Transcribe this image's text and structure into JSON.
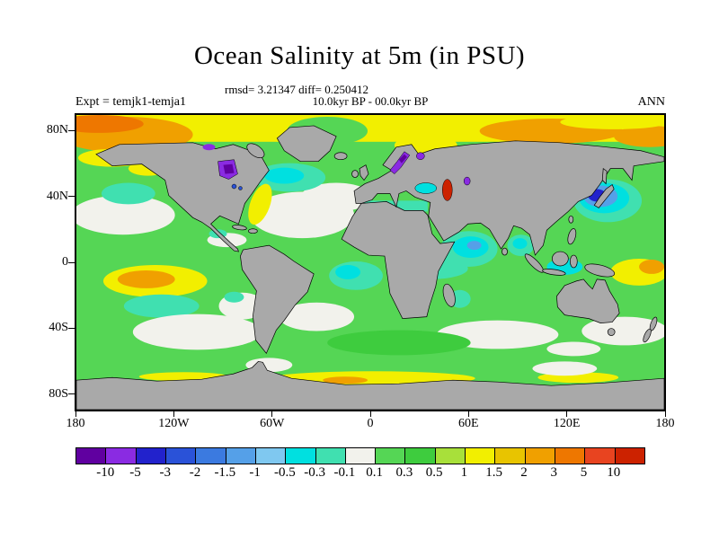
{
  "header": {
    "title": "Ocean Salinity at 5m (in PSU)",
    "stats": "rmsd= 3.21347 diff= 0.250412",
    "period": "10.0kyr BP - 00.0kyr BP",
    "experiment": "Expt = temjk1-temja1",
    "season": "ANN"
  },
  "axes": {
    "y_ticks": [
      {
        "label": "80N",
        "v": 18.3
      },
      {
        "label": "40N",
        "v": 91.7
      },
      {
        "label": "0",
        "v": 165
      },
      {
        "label": "40S",
        "v": 238.3
      },
      {
        "label": "80S",
        "v": 311.7
      }
    ],
    "x_ticks": [
      {
        "label": "180",
        "v": 0
      },
      {
        "label": "120W",
        "v": 109.3
      },
      {
        "label": "60W",
        "v": 218.7
      },
      {
        "label": "0",
        "v": 328
      },
      {
        "label": "60E",
        "v": 437.3
      },
      {
        "label": "120E",
        "v": 546.6
      },
      {
        "label": "180",
        "v": 656
      }
    ]
  },
  "colorbar": {
    "labels": [
      "-10",
      "-5",
      "-3",
      "-2",
      "-1.5",
      "-1",
      "-0.5",
      "-0.3",
      "-0.1",
      "0.1",
      "0.3",
      "0.5",
      "1",
      "1.5",
      "2",
      "3",
      "5",
      "10"
    ],
    "colors": [
      "#6000a0",
      "#8a2be2",
      "#2222cc",
      "#2a52d8",
      "#3b7ae0",
      "#55a0e8",
      "#7fc8f0",
      "#00e0e0",
      "#40e0b0",
      "#f2f2ec",
      "#55d655",
      "#3ecc3e",
      "#a8e03a",
      "#f2ef00",
      "#e8c400",
      "#f0a000",
      "#ee7700",
      "#e84420",
      "#cc2200"
    ]
  },
  "map": {
    "land_color": "#a9a9a9",
    "coast_color": "#000000",
    "ocean_default_color": "#55d655"
  },
  "chart_data": {
    "type": "heatmap",
    "title": "Ocean Salinity at 5m (in PSU)",
    "units": "PSU",
    "statistics": {
      "rmsd": 3.21347,
      "diff": 0.250412
    },
    "comparison": "10.0kyr BP - 00.0kyr BP",
    "experiment": "temjk1-temja1",
    "season": "ANN",
    "projection": "latitude-longitude world map",
    "lon_range": [
      -180,
      180
    ],
    "lat_range": [
      -90,
      90
    ],
    "x_tick_labels": [
      "180",
      "120W",
      "60W",
      "0",
      "60E",
      "120E",
      "180"
    ],
    "y_tick_labels": [
      "80N",
      "40N",
      "0",
      "40S",
      "80S"
    ],
    "contour_levels": [
      -10,
      -5,
      -3,
      -2,
      -1.5,
      -1,
      -0.5,
      -0.3,
      -0.1,
      0.1,
      0.3,
      0.5,
      1,
      1.5,
      2,
      3,
      5,
      10
    ],
    "palette": [
      "#6000a0",
      "#8a2be2",
      "#2222cc",
      "#2a52d8",
      "#3b7ae0",
      "#55a0e8",
      "#7fc8f0",
      "#00e0e0",
      "#40e0b0",
      "#f2f2ec",
      "#55d655",
      "#3ecc3e",
      "#a8e03a",
      "#f2ef00",
      "#e8c400",
      "#f0a000",
      "#ee7700",
      "#e84420",
      "#cc2200"
    ],
    "land_color": "#a9a9a9",
    "notable_features": [
      {
        "region": "Most open ocean",
        "anomaly_psu": "0.1 to 0.3",
        "sign": "slightly positive"
      },
      {
        "region": "Arctic Ocean band 70-90N",
        "anomaly_psu": "+1 to +3",
        "sign": "positive"
      },
      {
        "region": "Subtropical gyres (N/S Pacific, N/S Atlantic, S Indian)",
        "anomaly_psu": "-0.1 to 0.1",
        "sign": "near zero (white)"
      },
      {
        "region": "Subpolar North Atlantic / Labrador Sea",
        "anomaly_psu": "-0.5 to -0.1",
        "sign": "negative"
      },
      {
        "region": "NW Pacific near Japan / Sea of Japan",
        "anomaly_psu": "-3 to -1",
        "sign": "negative"
      },
      {
        "region": "Hudson Bay",
        "anomaly_psu": "< -5",
        "sign": "strong negative"
      },
      {
        "region": "Baltic Sea and White Sea",
        "anomaly_psu": "< -5",
        "sign": "strong negative"
      },
      {
        "region": "Caspian Sea",
        "anomaly_psu": "> +10",
        "sign": "strong positive"
      },
      {
        "region": "Eastern equatorial Pacific",
        "anomaly_psu": "+1 to +3",
        "sign": "positive"
      },
      {
        "region": "Arabian Sea and Bay of Bengal",
        "anomaly_psu": "-1 to -0.3",
        "sign": "negative"
      },
      {
        "region": "Antarctic coastal fringe",
        "anomaly_psu": "+0.5 to +2",
        "sign": "positive"
      }
    ]
  }
}
